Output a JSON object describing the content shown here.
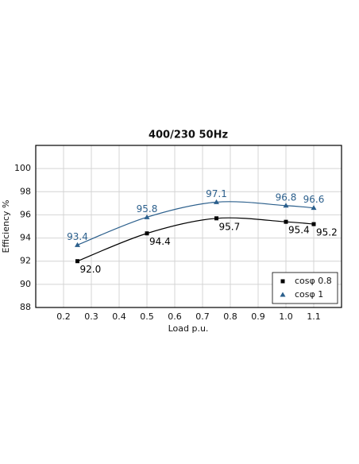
{
  "chart_data": {
    "type": "line",
    "title": "400/230 50Hz",
    "x_label": "Load p.u.",
    "y_label": "Efficiency %",
    "series": [
      {
        "name": "cosφ 0.8",
        "color": "#000000",
        "marker": "square",
        "x": [
          0.25,
          0.5,
          0.75,
          1.0,
          1.1
        ],
        "values": [
          92.0,
          94.4,
          95.7,
          95.4,
          95.2
        ],
        "value_labels": [
          "92.0",
          "94.4",
          "95.7",
          "95.4",
          "95.2"
        ]
      },
      {
        "name": "cosφ 1",
        "color": "#2b5f8c",
        "marker": "triangle",
        "x": [
          0.25,
          0.5,
          0.75,
          1.0,
          1.1
        ],
        "values": [
          93.4,
          95.8,
          97.1,
          96.8,
          96.6
        ]
      }
    ],
    "xlim": [
      0.1,
      1.2
    ],
    "xticks": [
      0.2,
      0.3,
      0.4,
      0.5,
      0.6,
      0.7,
      0.8,
      0.9,
      {
        "value": 1.0,
        "label": "1.0"
      },
      1.1
    ],
    "ylim": [
      88,
      102
    ],
    "yticks": [
      88,
      90,
      92,
      94,
      96,
      98,
      100
    ],
    "grid": true,
    "legend": "lower right"
  }
}
